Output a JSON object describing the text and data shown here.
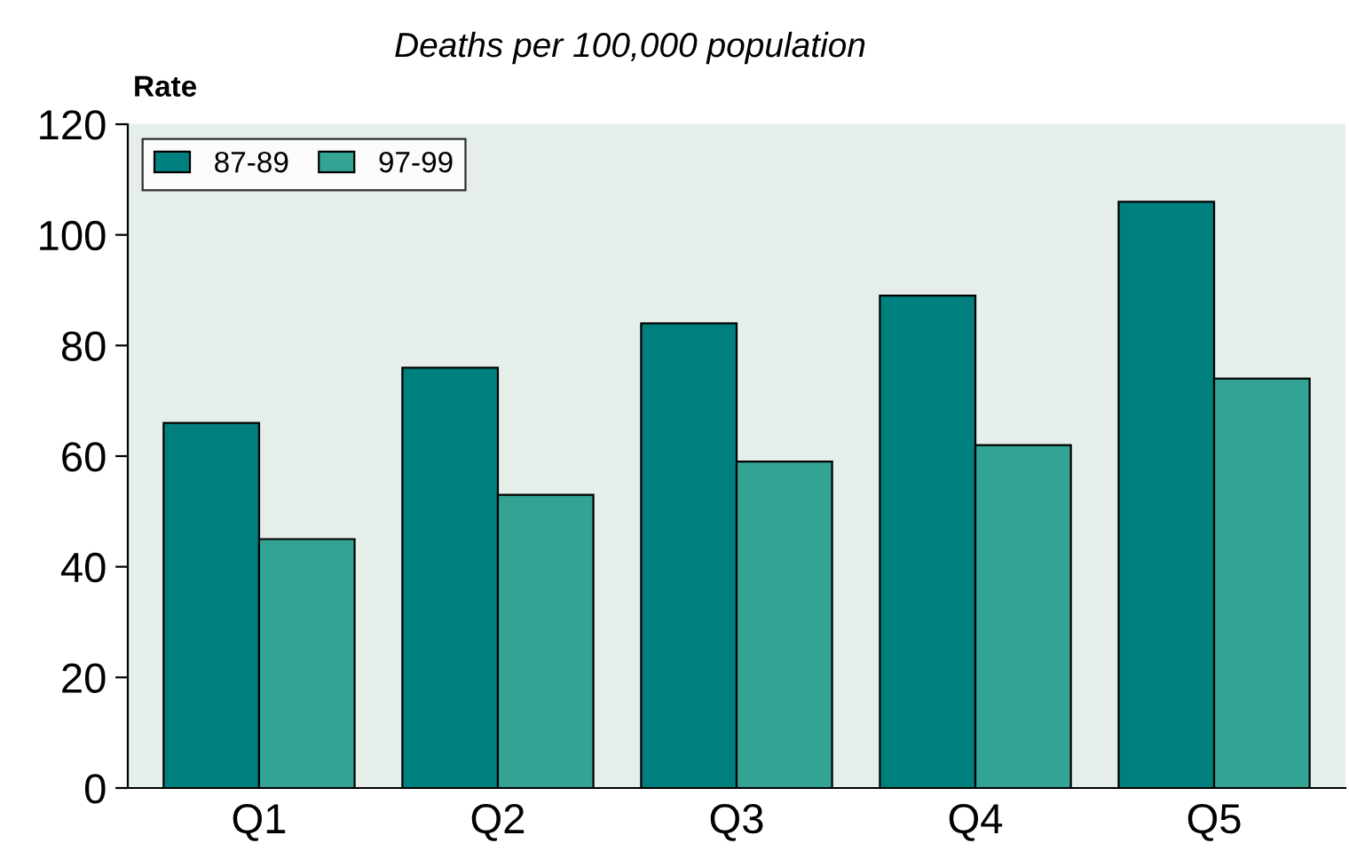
{
  "chart_data": {
    "type": "bar",
    "title": "Deaths per 100,000 population",
    "ylabel": "Rate",
    "categories": [
      "Q1",
      "Q2",
      "Q3",
      "Q4",
      "Q5"
    ],
    "series": [
      {
        "name": "87-89",
        "color": "#007f7f",
        "values": [
          66,
          76,
          84,
          89,
          106
        ]
      },
      {
        "name": "97-99",
        "color": "#33a394",
        "values": [
          45,
          53,
          59,
          62,
          74
        ]
      }
    ],
    "ylim": [
      0,
      120
    ],
    "yticks": [
      0,
      20,
      40,
      60,
      80,
      100,
      120
    ],
    "grid": false,
    "legend": "top left"
  }
}
